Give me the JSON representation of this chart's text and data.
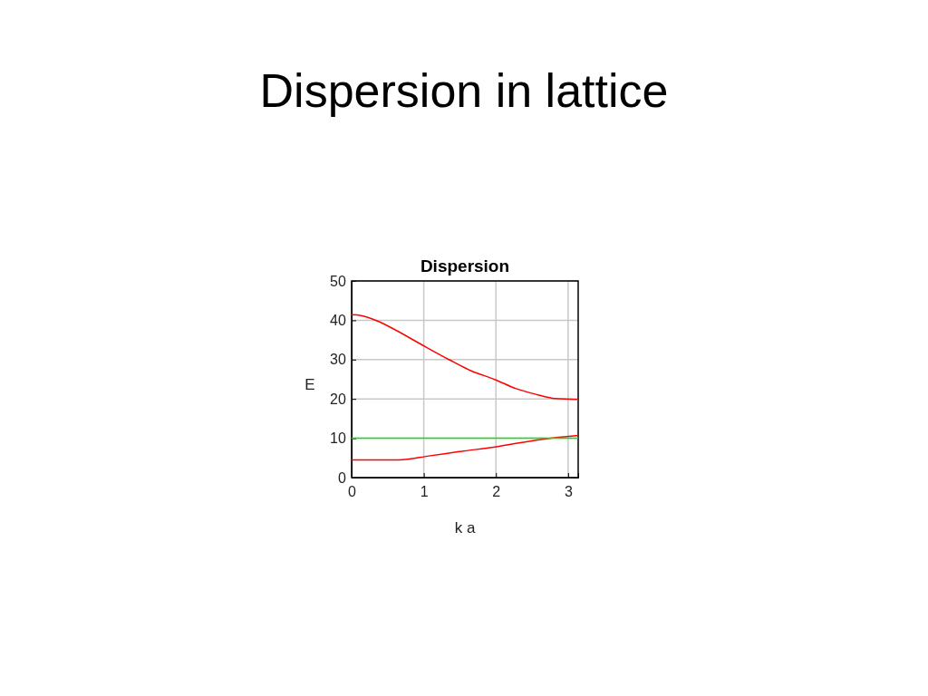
{
  "chart_data": {
    "type": "line",
    "title": "Dispersion in lattice",
    "subtitle": "Dispersion",
    "xlabel": "k a",
    "ylabel": "E",
    "xlim": [
      0,
      3.14
    ],
    "xticks": [
      0,
      1,
      2,
      3
    ],
    "ylim": [
      0,
      50
    ],
    "yticks": [
      0,
      10,
      20,
      30,
      40,
      50
    ],
    "grid": true,
    "marker": "none",
    "line_style": "solid",
    "series": [
      {
        "color": "#ff0000",
        "x": [
          0,
          0.13,
          0.36,
          0.61,
          0.98,
          1.36,
          1.65,
          1.99,
          2.28,
          2.57,
          2.82,
          3.14
        ],
        "values": [
          41.4,
          41.2,
          39.8,
          37.5,
          33.7,
          29.9,
          27.2,
          24.9,
          22.6,
          21.1,
          20.1,
          19.9
        ]
      },
      {
        "color": "#ff0000",
        "x": [
          0,
          0.65,
          1.07,
          1.49,
          1.99,
          2.62,
          3.14
        ],
        "values": [
          4.5,
          4.5,
          5.5,
          6.6,
          7.8,
          9.7,
          10.7
        ]
      },
      {
        "color": "#00ee00",
        "x": [
          0,
          3.14
        ],
        "values": [
          10,
          10
        ]
      }
    ]
  }
}
